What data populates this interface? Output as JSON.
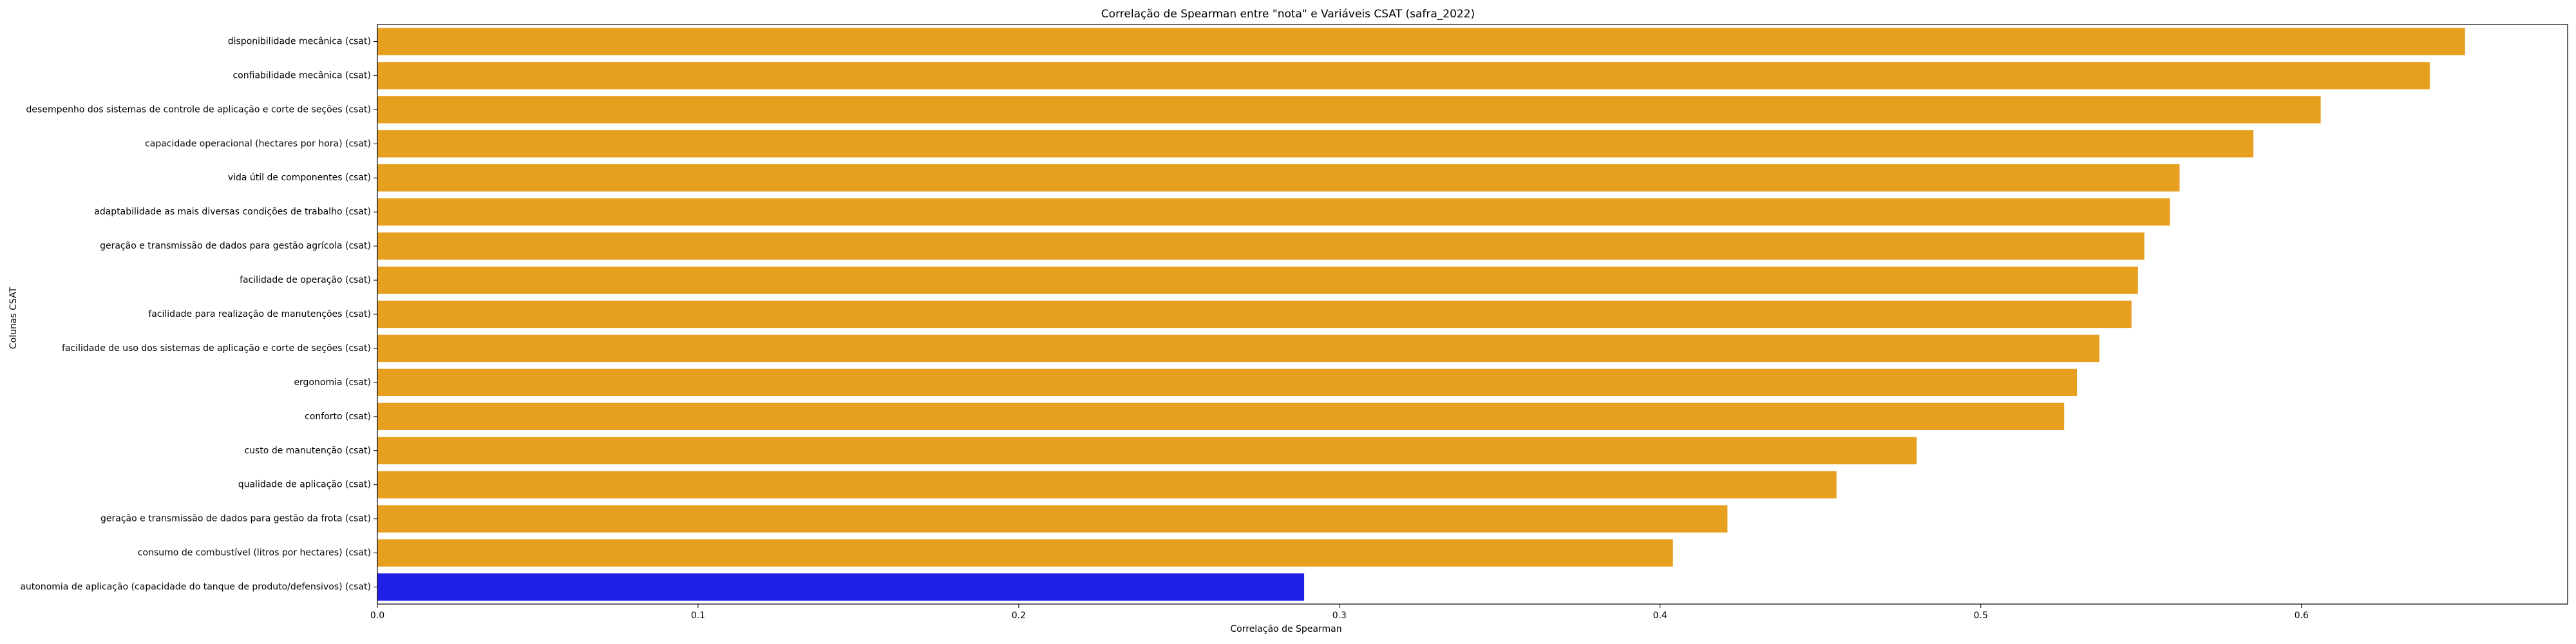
{
  "chart_data": {
    "type": "bar",
    "orientation": "horizontal",
    "title": "Correlação de Spearman entre \"nota\" e Variáveis CSAT (safra_2022)",
    "xlabel": "Correlação de Spearman",
    "ylabel": "Colunas CSAT",
    "xlim": [
      0,
      0.683
    ],
    "xticks": [
      0.0,
      0.1,
      0.2,
      0.3,
      0.4,
      0.5,
      0.6
    ],
    "xtick_labels": [
      "0.0",
      "0.1",
      "0.2",
      "0.3",
      "0.4",
      "0.5",
      "0.6"
    ],
    "grid": false,
    "categories": [
      "disponibilidade mecânica (csat)",
      "confiabilidade mecânica (csat)",
      "desempenho dos sistemas de controle de aplicação e corte de seções (csat)",
      "capacidade operacional (hectares por hora) (csat)",
      "vida útil de componentes (csat)",
      "adaptabilidade as mais diversas condições de trabalho (csat)",
      "geração e transmissão de dados para gestão agrícola (csat)",
      "facilidade de operação (csat)",
      "facilidade para realização de manutenções (csat)",
      "facilidade de uso dos sistemas de aplicação e corte de seções (csat)",
      "ergonomia (csat)",
      "conforto (csat)",
      "custo de manutenção (csat)",
      "qualidade de aplicação (csat)",
      "geração e transmissão de dados para gestão da frota (csat)",
      "consumo de combustível (litros por hectares) (csat)",
      "autonomia de aplicação (capacidade do tanque de produto/defensivos) (csat)"
    ],
    "values": [
      0.651,
      0.64,
      0.606,
      0.585,
      0.562,
      0.559,
      0.551,
      0.549,
      0.547,
      0.537,
      0.53,
      0.526,
      0.48,
      0.455,
      0.421,
      0.404,
      0.289
    ],
    "bar_colors": [
      "#E69F1F",
      "#E69F1F",
      "#E69F1F",
      "#E69F1F",
      "#E69F1F",
      "#E69F1F",
      "#E69F1F",
      "#E69F1F",
      "#E69F1F",
      "#E69F1F",
      "#E69F1F",
      "#E69F1F",
      "#E69F1F",
      "#E69F1F",
      "#E69F1F",
      "#E69F1F",
      "#1F1FE6"
    ]
  }
}
